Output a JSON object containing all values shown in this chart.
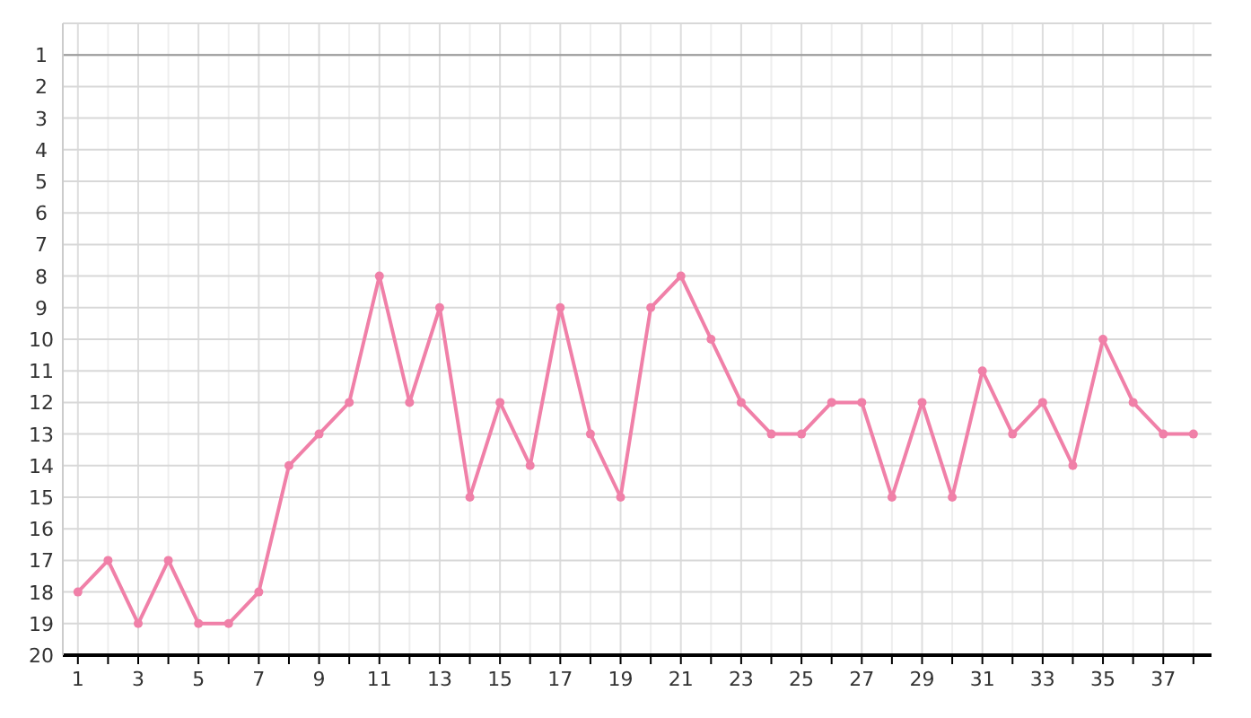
{
  "chart_data": {
    "type": "line",
    "x": [
      1,
      2,
      3,
      4,
      5,
      6,
      7,
      8,
      9,
      10,
      11,
      12,
      13,
      14,
      15,
      16,
      17,
      18,
      19,
      20,
      21,
      22,
      23,
      24,
      25,
      26,
      27,
      28,
      29,
      30,
      31,
      32,
      33,
      34,
      35,
      36,
      37,
      38
    ],
    "series": [
      {
        "color": "#f080a8",
        "values": [
          18,
          17,
          19,
          17,
          19,
          19,
          18,
          14,
          13,
          12,
          8,
          12,
          9,
          15,
          12,
          14,
          9,
          13,
          15,
          9,
          8,
          10,
          12,
          13,
          13,
          12,
          12,
          15,
          12,
          15,
          11,
          13,
          12,
          14,
          10,
          12,
          13,
          13
        ]
      }
    ],
    "xlim": [
      0.5,
      38.6
    ],
    "ylim": [
      20,
      0
    ],
    "xticks": [
      1,
      {
        "value": 2,
        "label": null
      },
      3,
      {
        "value": 4,
        "label": null
      },
      5,
      {
        "value": 6,
        "label": null
      },
      7,
      {
        "value": 8,
        "label": null
      },
      9,
      {
        "value": 10,
        "label": null
      },
      11,
      {
        "value": 12,
        "label": null
      },
      13,
      {
        "value": 14,
        "label": null
      },
      15,
      {
        "value": 16,
        "label": null
      },
      17,
      {
        "value": 18,
        "label": null
      },
      19,
      {
        "value": 20,
        "label": null
      },
      21,
      {
        "value": 22,
        "label": null
      },
      23,
      {
        "value": 24,
        "label": null
      },
      25,
      {
        "value": 26,
        "label": null
      },
      27,
      {
        "value": 28,
        "label": null
      },
      29,
      {
        "value": 30,
        "label": null
      },
      31,
      {
        "value": 32,
        "label": null
      },
      33,
      {
        "value": 34,
        "label": null
      },
      35,
      {
        "value": 36,
        "label": null
      },
      37,
      {
        "value": 38,
        "label": null
      }
    ],
    "yticks": [
      {
        "value": 0,
        "label": null
      },
      1,
      2,
      3,
      4,
      5,
      6,
      7,
      8,
      9,
      10,
      11,
      12,
      13,
      14,
      15,
      16,
      17,
      18,
      19,
      20
    ],
    "ref_lines": [
      {
        "axis": "y",
        "value": 1,
        "color": "#999999"
      }
    ],
    "grid": true,
    "marker": "circle",
    "line_style": "solid"
  }
}
